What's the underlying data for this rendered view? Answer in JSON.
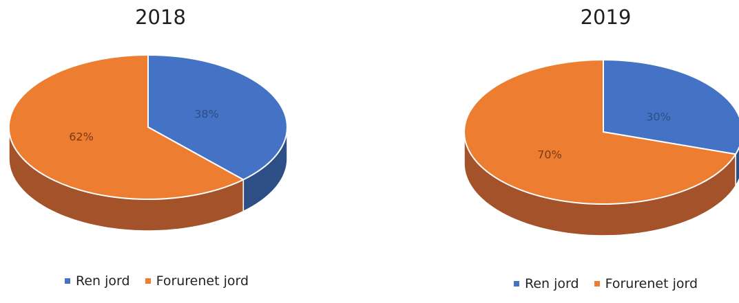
{
  "colors": {
    "ren_jord": "#4472C4",
    "ren_jord_side": "#2E4F86",
    "forurenet_jord": "#ED7D31",
    "forurenet_jord_side": "#A4522A"
  },
  "legend": {
    "ren_jord": "Ren jord",
    "forurenet_jord": "Forurenet jord"
  },
  "chart_data": [
    {
      "type": "pie",
      "title": "2018",
      "categories": [
        "Ren jord",
        "Forurenet jord"
      ],
      "values": [
        38,
        62
      ],
      "data_labels": [
        "38%",
        "62%"
      ],
      "style": "3d",
      "legend_position": "bottom"
    },
    {
      "type": "pie",
      "title": "2019",
      "categories": [
        "Ren jord",
        "Forurenet jord"
      ],
      "values": [
        30,
        70
      ],
      "data_labels": [
        "30%",
        "70%"
      ],
      "style": "3d",
      "legend_position": "bottom"
    }
  ]
}
